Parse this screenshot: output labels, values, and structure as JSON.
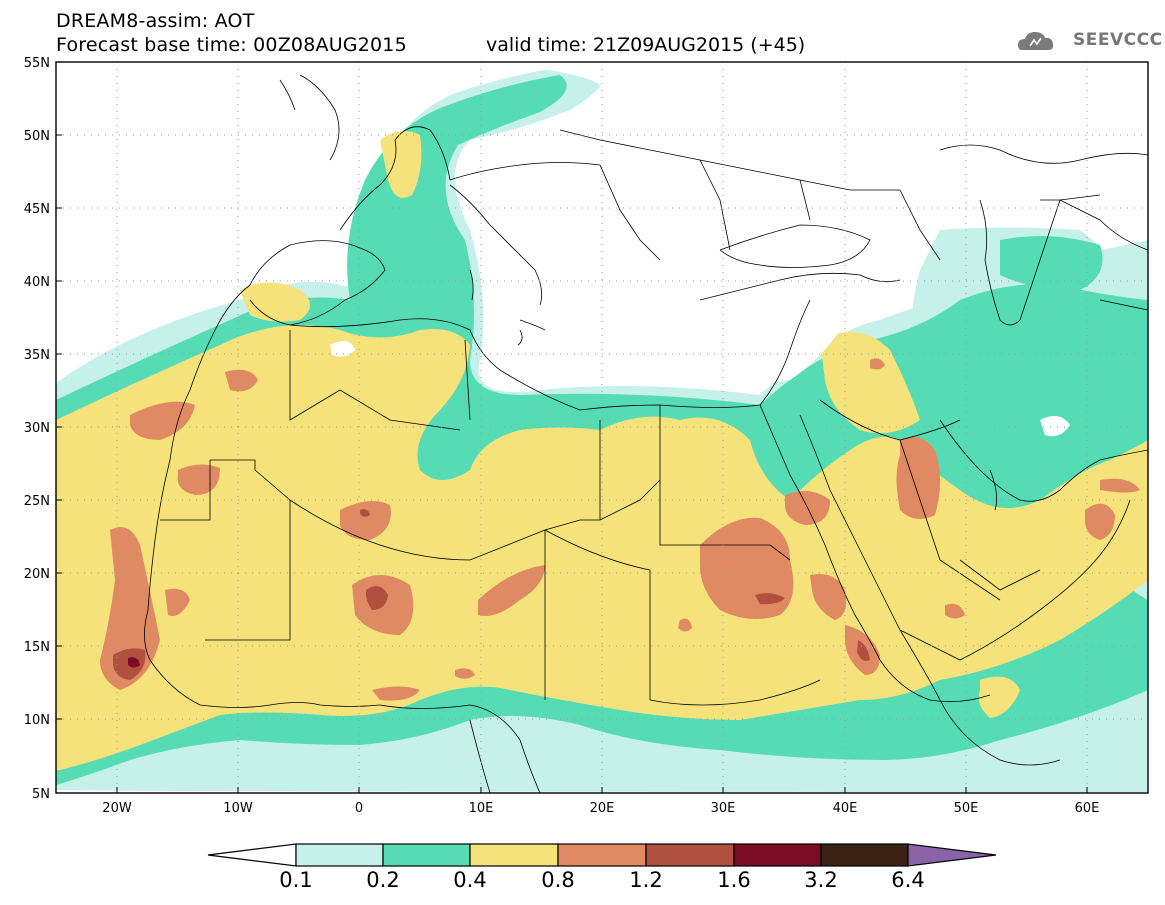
{
  "header": {
    "title": "DREAM8-assim: AOT",
    "base_time": "Forecast base time: 00Z08AUG2015",
    "valid_time": "valid time: 21Z09AUG2015 (+45)",
    "logo_text": "SEEVCCC"
  },
  "axes": {
    "lat_labels": [
      "55N",
      "50N",
      "45N",
      "40N",
      "35N",
      "30N",
      "25N",
      "20N",
      "15N",
      "10N",
      "5N"
    ],
    "lon_labels": [
      "20W",
      "10W",
      "0",
      "10E",
      "20E",
      "30E",
      "40E",
      "50E",
      "60E"
    ],
    "lat_range": [
      5,
      55
    ],
    "lon_range": [
      -25,
      65
    ],
    "grid": "dotted"
  },
  "colorbar": {
    "labels": [
      "0.1",
      "0.2",
      "0.4",
      "0.8",
      "1.2",
      "1.6",
      "3.2",
      "6.4"
    ],
    "colors": [
      "#ffffff",
      "#c6f0ea",
      "#56dcb4",
      "#f5e27a",
      "#e08a64",
      "#b0503e",
      "#7a0c26",
      "#3a2314",
      "#8a62a6"
    ]
  },
  "field_colors": {
    "lev1": "#c6f0ea",
    "lev2": "#56dcb4",
    "lev3": "#f5e27a",
    "lev4": "#e08a64",
    "lev5": "#b0503e",
    "lev6": "#7a0c26"
  }
}
